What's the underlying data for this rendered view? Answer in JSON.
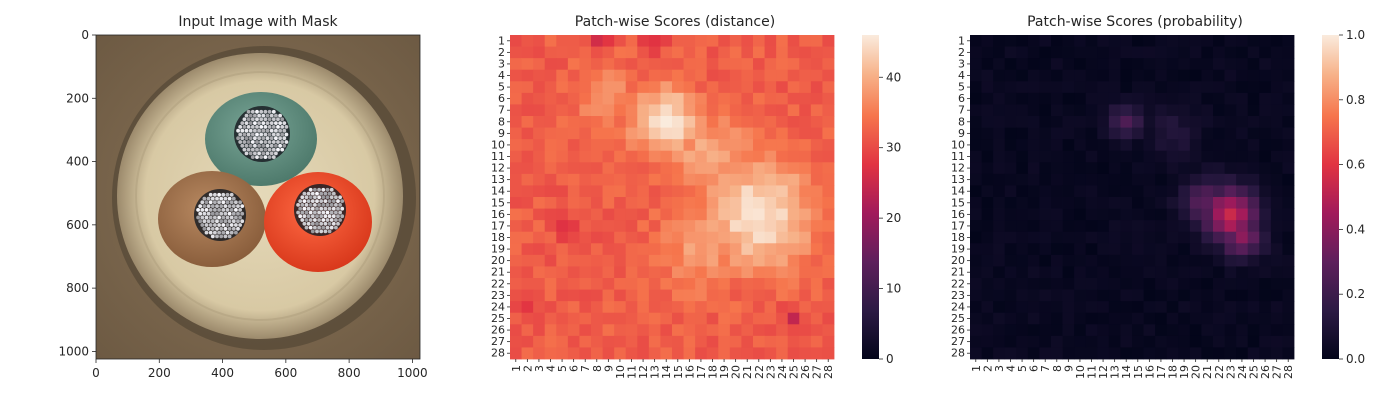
{
  "chart_data": [
    {
      "type": "image",
      "title": "Input Image with Mask",
      "xlim": [
        0,
        1024
      ],
      "ylim": [
        0,
        1024
      ],
      "xticks": [
        0,
        200,
        400,
        600,
        800,
        1000
      ],
      "yticks": [
        0,
        200,
        400,
        600,
        800,
        1000
      ],
      "image_description": "Top view of a cable cross-section with three cores (green, brown, red) containing metal strands"
    },
    {
      "type": "heatmap",
      "title": "Patch-wise Scores (distance)",
      "rows": 28,
      "cols": 28,
      "row_labels": [
        "1",
        "2",
        "3",
        "4",
        "5",
        "6",
        "7",
        "8",
        "9",
        "10",
        "11",
        "12",
        "13",
        "14",
        "15",
        "16",
        "17",
        "18",
        "19",
        "20",
        "21",
        "22",
        "23",
        "24",
        "25",
        "26",
        "27",
        "28"
      ],
      "col_labels": [
        "1",
        "2",
        "3",
        "4",
        "5",
        "6",
        "7",
        "8",
        "9",
        "10",
        "11",
        "12",
        "13",
        "14",
        "15",
        "16",
        "17",
        "18",
        "19",
        "20",
        "21",
        "22",
        "23",
        "24",
        "25",
        "26",
        "27",
        "28"
      ],
      "colorbar": {
        "min": 0,
        "max": 46,
        "ticks": [
          0,
          10,
          20,
          30,
          40
        ]
      },
      "colormap": "rocket",
      "base_value": 32,
      "hotspots": [
        {
          "row": 8,
          "col": 14,
          "value": 46,
          "spread": 2.0
        },
        {
          "row": 16,
          "col": 22,
          "value": 46,
          "spread": 3.2
        },
        {
          "row": 11,
          "col": 18,
          "value": 40,
          "spread": 2.5
        },
        {
          "row": 6,
          "col": 9,
          "value": 37,
          "spread": 2.0
        },
        {
          "row": 19,
          "col": 17,
          "value": 38,
          "spread": 2.5
        }
      ],
      "lowspots": [
        {
          "row": 1,
          "col": 8,
          "value": 26
        },
        {
          "row": 1,
          "col": 13,
          "value": 26
        },
        {
          "row": 17,
          "col": 5,
          "value": 27
        },
        {
          "row": 25,
          "col": 25,
          "value": 26
        },
        {
          "row": 24,
          "col": 2,
          "value": 27
        }
      ]
    },
    {
      "type": "heatmap",
      "title": "Patch-wise Scores (probability)",
      "rows": 28,
      "cols": 28,
      "row_labels": [
        "1",
        "2",
        "3",
        "4",
        "5",
        "6",
        "7",
        "8",
        "9",
        "10",
        "11",
        "12",
        "13",
        "14",
        "15",
        "16",
        "17",
        "18",
        "19",
        "20",
        "21",
        "22",
        "23",
        "24",
        "25",
        "26",
        "27",
        "28"
      ],
      "col_labels": [
        "1",
        "2",
        "3",
        "4",
        "5",
        "6",
        "7",
        "8",
        "9",
        "10",
        "11",
        "12",
        "13",
        "14",
        "15",
        "16",
        "17",
        "18",
        "19",
        "20",
        "21",
        "22",
        "23",
        "24",
        "25",
        "26",
        "27",
        "28"
      ],
      "colorbar": {
        "min": 0.0,
        "max": 1.0,
        "ticks": [
          0.0,
          0.2,
          0.4,
          0.6,
          0.8,
          1.0
        ],
        "tick_labels": [
          "0.0",
          "0.2",
          "0.4",
          "0.6",
          "0.8",
          "1.0"
        ]
      },
      "colormap": "rocket",
      "base_value": 0.02,
      "hotspots": [
        {
          "row": 8,
          "col": 14,
          "value": 0.25,
          "spread": 1.0
        },
        {
          "row": 16,
          "col": 23,
          "value": 0.55,
          "spread": 1.6
        },
        {
          "row": 15,
          "col": 21,
          "value": 0.3,
          "spread": 1.5
        },
        {
          "row": 18,
          "col": 24,
          "value": 0.4,
          "spread": 1.2
        },
        {
          "row": 9,
          "col": 18,
          "value": 0.12,
          "spread": 1.5
        }
      ]
    }
  ]
}
